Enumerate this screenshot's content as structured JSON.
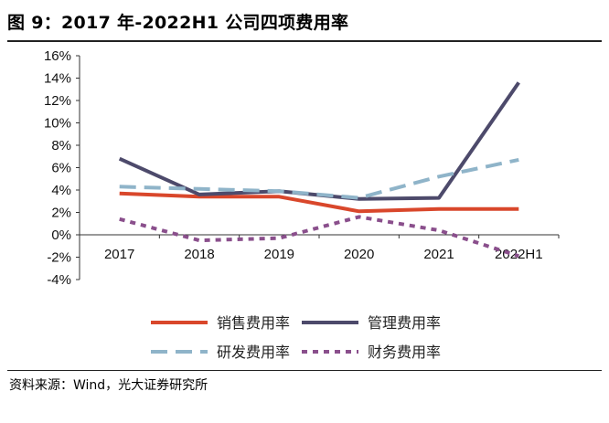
{
  "header": {
    "title": "图 9：2017 年-2022H1 公司四项费用率"
  },
  "footer": {
    "source": "资料来源：Wind，光大证券研究所"
  },
  "chart_data": {
    "type": "line",
    "categories": [
      "2017",
      "2018",
      "2019",
      "2020",
      "2021",
      "2022H1"
    ],
    "ylim": [
      -4,
      16
    ],
    "yticks": [
      -4,
      -2,
      0,
      2,
      4,
      6,
      8,
      10,
      12,
      14,
      16
    ],
    "ytick_labels": [
      "-4%",
      "-2%",
      "0%",
      "2%",
      "4%",
      "6%",
      "8%",
      "10%",
      "12%",
      "14%",
      "16%"
    ],
    "legend_position": "bottom",
    "grid": false,
    "series": [
      {
        "name": "销售费用率",
        "values": [
          3.7,
          3.4,
          3.4,
          2.1,
          2.3,
          2.3
        ],
        "color": "#d9472b",
        "dash": "solid"
      },
      {
        "name": "管理费用率",
        "values": [
          6.8,
          3.6,
          3.9,
          3.2,
          3.3,
          13.6
        ],
        "color": "#4d4a6b",
        "dash": "solid"
      },
      {
        "name": "研发费用率",
        "values": [
          4.3,
          4.1,
          3.9,
          3.3,
          5.2,
          6.7
        ],
        "color": "#8fb4c9",
        "dash": "long"
      },
      {
        "name": "财务费用率",
        "values": [
          1.4,
          -0.5,
          -0.3,
          1.6,
          0.4,
          -1.9
        ],
        "color": "#8a4f8c",
        "dash": "short"
      }
    ]
  }
}
